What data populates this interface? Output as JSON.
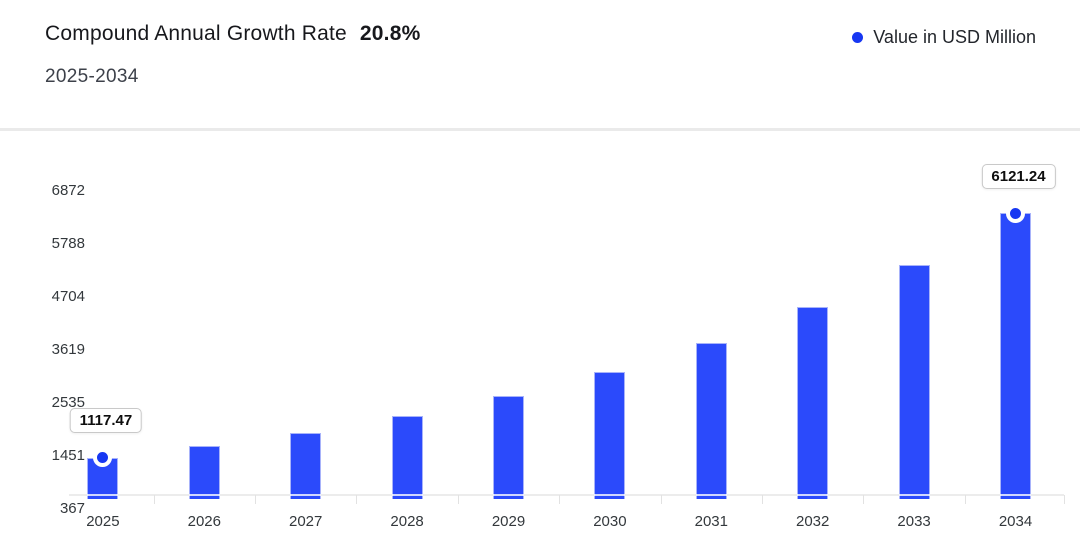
{
  "header": {
    "title": "Compound Annual Growth Rate",
    "cagr_value": "20.8%",
    "subtitle": "2025-2034",
    "legend_label": "Value in USD Million"
  },
  "chart_data": {
    "type": "bar",
    "title": "Compound Annual Growth Rate 20.8% 2025-2034",
    "categories": [
      "2025",
      "2026",
      "2027",
      "2028",
      "2029",
      "2030",
      "2031",
      "2032",
      "2033",
      "2034"
    ],
    "series": [
      {
        "name": "Value in USD Million",
        "values": [
          1117.47,
          1349.9,
          1630.68,
          1969.86,
          2379.59,
          2874.55,
          3472.46,
          4194.73,
          5067.23,
          6121.24
        ]
      }
    ],
    "y_ticks": [
      367,
      1451,
      2535,
      3619,
      4704,
      5788,
      6872
    ],
    "ylim": [
      367,
      6872
    ],
    "grid": false,
    "legend_position": "top-right",
    "annotations": [
      {
        "index": 0,
        "category": "2025",
        "label": "1117.47"
      },
      {
        "index": 9,
        "category": "2034",
        "label": "6121.24"
      }
    ],
    "colors": {
      "bar": "#2B4AFB",
      "bar_stroke": "#A8B3FA",
      "marker": "#1737F2",
      "axis_line": "#ECECEC",
      "label_text": "#33383C"
    }
  }
}
